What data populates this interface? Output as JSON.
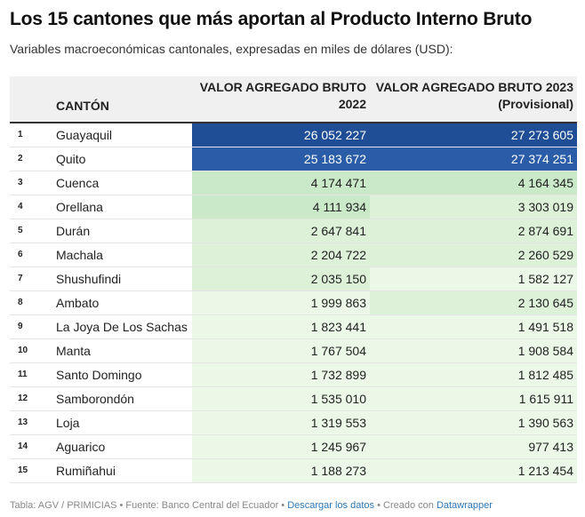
{
  "title": "Los 15 cantones que más aportan al Producto Interno Bruto",
  "subtitle": "Variables macroeconómicas cantonales, expresadas en miles de dólares (USD):",
  "colors": {
    "darkest": "#1f4e96",
    "dark": "#2a5ca8",
    "mid": "#c9e9c9",
    "light": "#dcf1d8",
    "lightest": "#ebf7e7"
  },
  "chart_data": {
    "type": "table",
    "headers": {
      "canton": "CANTÓN",
      "v2022_line1": "VALOR AGREGADO BRUTO",
      "v2022_line2": "2022",
      "v2023_line1": "VALOR AGREGADO BRUTO 2023",
      "v2023_line2": "(Provisional)"
    },
    "rows": [
      {
        "rank": "1",
        "canton": "Guayaquil",
        "v2022": "26 052 227",
        "v2023": "27 273 605",
        "c2022": "darkest",
        "c2023": "darkest"
      },
      {
        "rank": "2",
        "canton": "Quito",
        "v2022": "25 183 672",
        "v2023": "27 374 251",
        "c2022": "dark",
        "c2023": "dark"
      },
      {
        "rank": "3",
        "canton": "Cuenca",
        "v2022": "4 174 471",
        "v2023": "4 164 345",
        "c2022": "mid",
        "c2023": "mid"
      },
      {
        "rank": "4",
        "canton": "Orellana",
        "v2022": "4 111 934",
        "v2023": "3 303 019",
        "c2022": "mid",
        "c2023": "light"
      },
      {
        "rank": "5",
        "canton": "Durán",
        "v2022": "2 647 841",
        "v2023": "2 874 691",
        "c2022": "light",
        "c2023": "light"
      },
      {
        "rank": "6",
        "canton": "Machala",
        "v2022": "2 204 722",
        "v2023": "2 260 529",
        "c2022": "light",
        "c2023": "light"
      },
      {
        "rank": "7",
        "canton": "Shushufindi",
        "v2022": "2 035 150",
        "v2023": "1 582 127",
        "c2022": "light",
        "c2023": "lightest"
      },
      {
        "rank": "8",
        "canton": "Ambato",
        "v2022": "1 999 863",
        "v2023": "2 130 645",
        "c2022": "lightest",
        "c2023": "light"
      },
      {
        "rank": "9",
        "canton": "La Joya De Los Sachas",
        "v2022": "1 823 441",
        "v2023": "1 491 518",
        "c2022": "lightest",
        "c2023": "lightest"
      },
      {
        "rank": "10",
        "canton": "Manta",
        "v2022": "1 767 504",
        "v2023": "1 908 584",
        "c2022": "lightest",
        "c2023": "lightest"
      },
      {
        "rank": "11",
        "canton": "Santo Domingo",
        "v2022": "1 732 899",
        "v2023": "1 812 485",
        "c2022": "lightest",
        "c2023": "lightest"
      },
      {
        "rank": "12",
        "canton": "Samborondón",
        "v2022": "1 535 010",
        "v2023": "1 615 911",
        "c2022": "lightest",
        "c2023": "lightest"
      },
      {
        "rank": "13",
        "canton": "Loja",
        "v2022": "1 319 553",
        "v2023": "1 390 563",
        "c2022": "lightest",
        "c2023": "lightest"
      },
      {
        "rank": "14",
        "canton": "Aguarico",
        "v2022": "1 245 967",
        "v2023": "977 413",
        "c2022": "lightest",
        "c2023": "lightest"
      },
      {
        "rank": "15",
        "canton": "Rumiñahui",
        "v2022": "1 188 273",
        "v2023": "1 213 454",
        "c2022": "lightest",
        "c2023": "lightest"
      }
    ]
  },
  "footer": {
    "source_label": "Tabla: AGV / PRIMICIAS",
    "sep": " • ",
    "fuente": "Fuente: Banco Central del Ecuador",
    "download_link": "Descargar los datos",
    "created": "Creado con ",
    "datawrapper_link": "Datawrapper"
  }
}
